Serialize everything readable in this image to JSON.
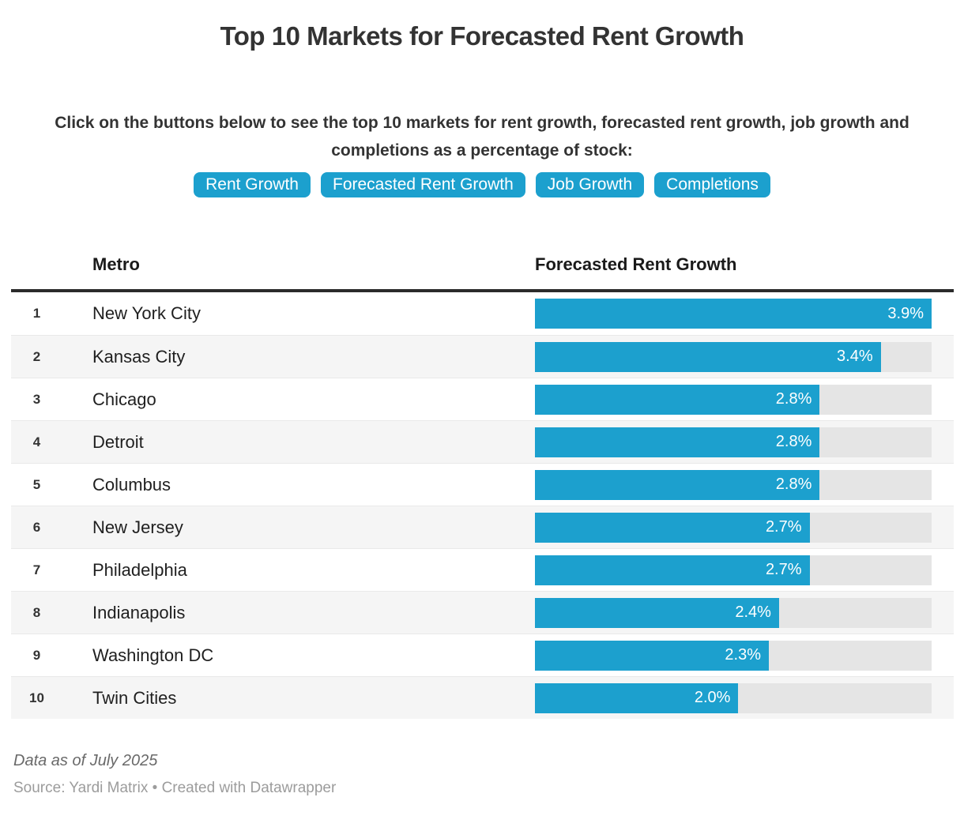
{
  "colors": {
    "accent": "#1CA0CE"
  },
  "header": {
    "title": "Top 10 Markets for Forecasted Rent Growth",
    "subtitle": "Click on the buttons below to see the top 10 markets for rent growth, forecasted rent growth, job growth and completions as a percentage of stock:",
    "buttons": [
      {
        "label": "Rent Growth"
      },
      {
        "label": "Forecasted Rent Growth"
      },
      {
        "label": "Job Growth"
      },
      {
        "label": "Completions"
      }
    ]
  },
  "table": {
    "columns": {
      "metro": "Metro",
      "value": "Forecasted Rent Growth"
    },
    "rows": [
      {
        "rank": "1",
        "metro": "New York City",
        "value": 3.9,
        "label": "3.9%"
      },
      {
        "rank": "2",
        "metro": "Kansas City",
        "value": 3.4,
        "label": "3.4%"
      },
      {
        "rank": "3",
        "metro": "Chicago",
        "value": 2.8,
        "label": "2.8%"
      },
      {
        "rank": "4",
        "metro": "Detroit",
        "value": 2.8,
        "label": "2.8%"
      },
      {
        "rank": "5",
        "metro": "Columbus",
        "value": 2.8,
        "label": "2.8%"
      },
      {
        "rank": "6",
        "metro": "New Jersey",
        "value": 2.7,
        "label": "2.7%"
      },
      {
        "rank": "7",
        "metro": "Philadelphia",
        "value": 2.7,
        "label": "2.7%"
      },
      {
        "rank": "8",
        "metro": "Indianapolis",
        "value": 2.4,
        "label": "2.4%"
      },
      {
        "rank": "9",
        "metro": "Washington DC",
        "value": 2.3,
        "label": "2.3%"
      },
      {
        "rank": "10",
        "metro": "Twin Cities",
        "value": 2.0,
        "label": "2.0%"
      }
    ]
  },
  "chart_data": {
    "type": "bar",
    "title": "Top 10 Markets for Forecasted Rent Growth",
    "categories": [
      "New York City",
      "Kansas City",
      "Chicago",
      "Detroit",
      "Columbus",
      "New Jersey",
      "Philadelphia",
      "Indianapolis",
      "Washington DC",
      "Twin Cities"
    ],
    "values": [
      3.9,
      3.4,
      2.8,
      2.8,
      2.8,
      2.7,
      2.7,
      2.4,
      2.3,
      2.0
    ],
    "data_labels": [
      "3.9%",
      "3.4%",
      "2.8%",
      "2.8%",
      "2.8%",
      "2.7%",
      "2.7%",
      "2.4%",
      "2.3%",
      "2.0%"
    ],
    "xlabel": "Forecasted Rent Growth",
    "ylabel": "Metro",
    "xlim": [
      0,
      3.9
    ],
    "orientation": "horizontal",
    "grid": false,
    "legend": false,
    "bar_color": "#1CA0CE"
  },
  "footer": {
    "note": "Data as of July 2025",
    "source": "Source: Yardi Matrix • Created with Datawrapper"
  }
}
